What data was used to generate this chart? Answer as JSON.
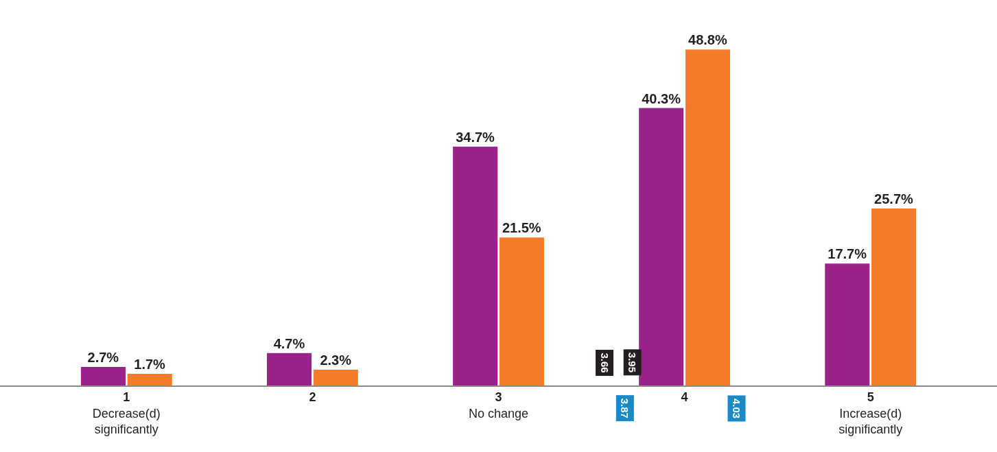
{
  "chart_data": {
    "type": "bar",
    "categories": [
      "1\nDecrease(d)\nsignificantly",
      "2",
      "3\nNo change",
      "4",
      "5\nIncrease(d)\nsignificantly"
    ],
    "series": [
      {
        "color": "#9b2289",
        "values": [
          2.7,
          4.7,
          34.7,
          40.3,
          17.7
        ],
        "value_labels": [
          "2.7%",
          "4.7%",
          "34.7%",
          "40.3%",
          "17.7%"
        ]
      },
      {
        "color": "#f47b2a",
        "values": [
          1.7,
          2.3,
          21.5,
          48.8,
          25.7
        ],
        "value_labels": [
          "1.7%",
          "2.3%",
          "21.5%",
          "48.8%",
          "25.7%"
        ]
      }
    ],
    "annotations": [
      "3.66",
      "3.95",
      "3.87",
      "4.03"
    ],
    "grid": false
  }
}
